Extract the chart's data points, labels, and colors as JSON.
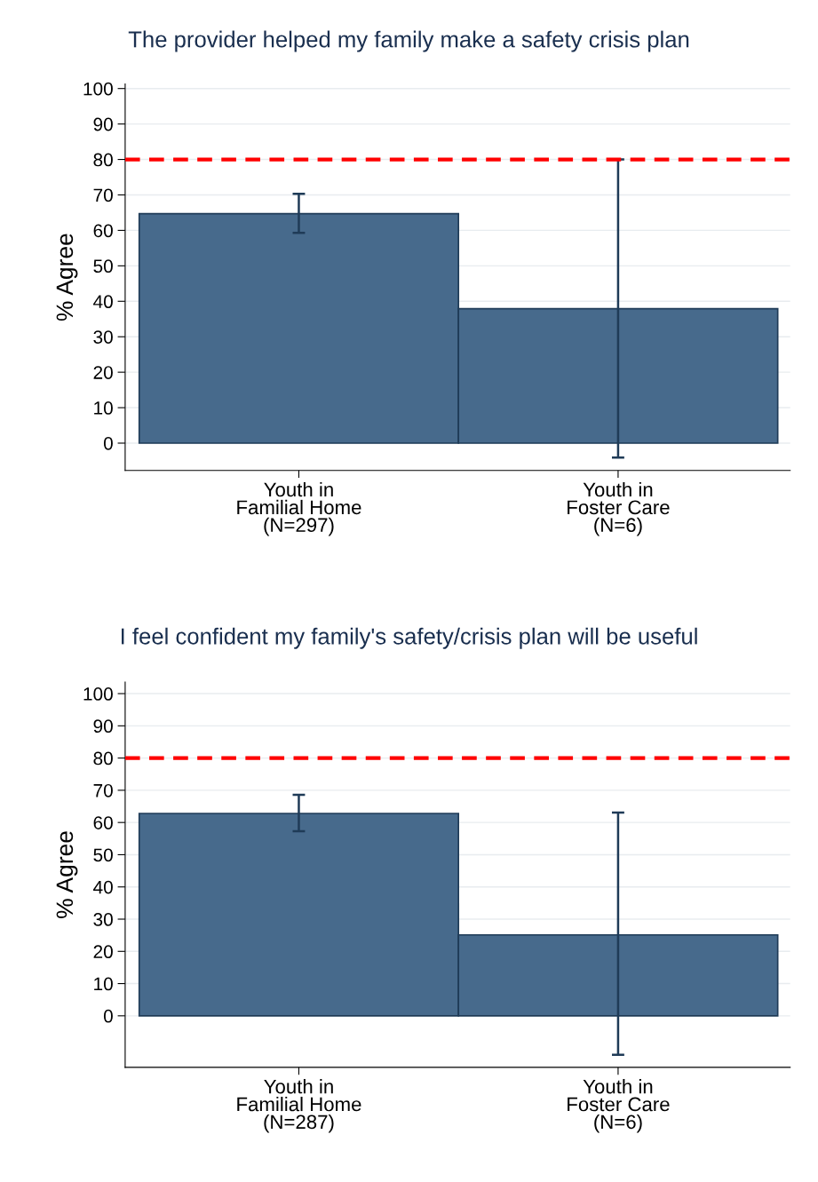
{
  "chart_data": [
    {
      "type": "bar",
      "title": "The provider helped my family make a safety crisis plan",
      "ylabel": "% Agree",
      "categories": [
        "Youth in\nFamilial Home\n(N=297)",
        "Youth in\nFoster Care\n(N=6)"
      ],
      "values": [
        64.7,
        37.9
      ],
      "errors": [
        [
          59.3,
          70.3
        ],
        [
          -4.1,
          80.0
        ]
      ],
      "color": "#476a8c",
      "ylim": [
        -7.7,
        101.3
      ],
      "yticks": [
        0,
        10,
        20,
        30,
        40,
        50,
        60,
        70,
        80,
        90,
        100
      ],
      "grid": "y",
      "ref_lines": [
        {
          "axis": "y",
          "value": 80,
          "color": "#ff0000",
          "line_style": "dashed"
        }
      ]
    },
    {
      "type": "bar",
      "title": "I feel confident my family's safety/crisis plan will be useful",
      "ylabel": "% Agree",
      "categories": [
        "Youth in\nFamilial Home\n(N=287)",
        "Youth in\nFoster Care\n(N=6)"
      ],
      "values": [
        62.8,
        25.1
      ],
      "errors": [
        [
          57.3,
          68.6
        ],
        [
          -12.1,
          63.1
        ]
      ],
      "color": "#476a8c",
      "ylim": [
        -16,
        103.6
      ],
      "yticks": [
        0,
        10,
        20,
        30,
        40,
        50,
        60,
        70,
        80,
        90,
        100
      ],
      "grid": "y",
      "ref_lines": [
        {
          "axis": "y",
          "value": 80,
          "color": "#ff0000",
          "line_style": "dashed"
        }
      ]
    }
  ]
}
